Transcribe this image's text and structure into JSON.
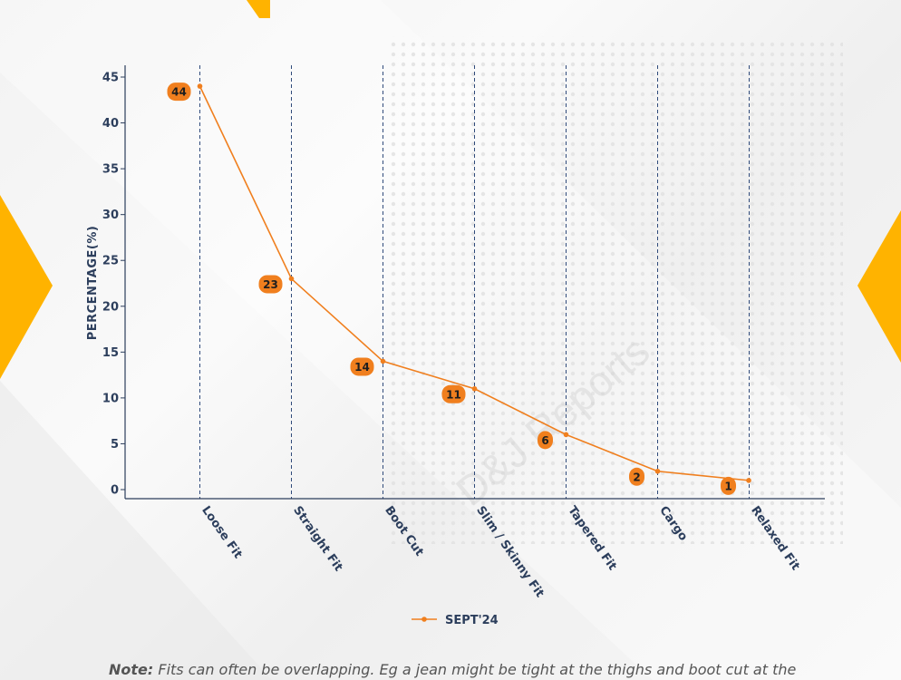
{
  "chart_data": {
    "type": "line",
    "categories": [
      "Loose Fit",
      "Straight Fit",
      "Boot Cut",
      "Slim / Skinny Fit",
      "Tapered Fit",
      "Cargo",
      "Relaxed Fit"
    ],
    "series": [
      {
        "name": "SEPT'24",
        "values": [
          44,
          23,
          14,
          11,
          6,
          2,
          1
        ],
        "color": "#f07f1e"
      }
    ],
    "data_labels": [
      "44",
      "23",
      "14",
      "11",
      "6",
      "2",
      "1"
    ],
    "ylabel": "PERCENTAGE(%)",
    "xlabel": "",
    "ylim": [
      0,
      45
    ],
    "yticks": [
      0,
      5,
      10,
      15,
      20,
      25,
      30,
      35,
      40,
      45
    ],
    "grid": "vertical dashed at categories",
    "legend_position": "bottom-center",
    "colors": {
      "line": "#f07f1e",
      "axis": "#2c3e5c",
      "grid": "#2f4a7a",
      "accent": "#ffb300"
    }
  },
  "note": {
    "prefix": "Note:",
    "text": " Fits can often be overlapping. Eg a jean might be tight at the thighs and boot cut at the"
  },
  "watermark": "D&J Reports"
}
